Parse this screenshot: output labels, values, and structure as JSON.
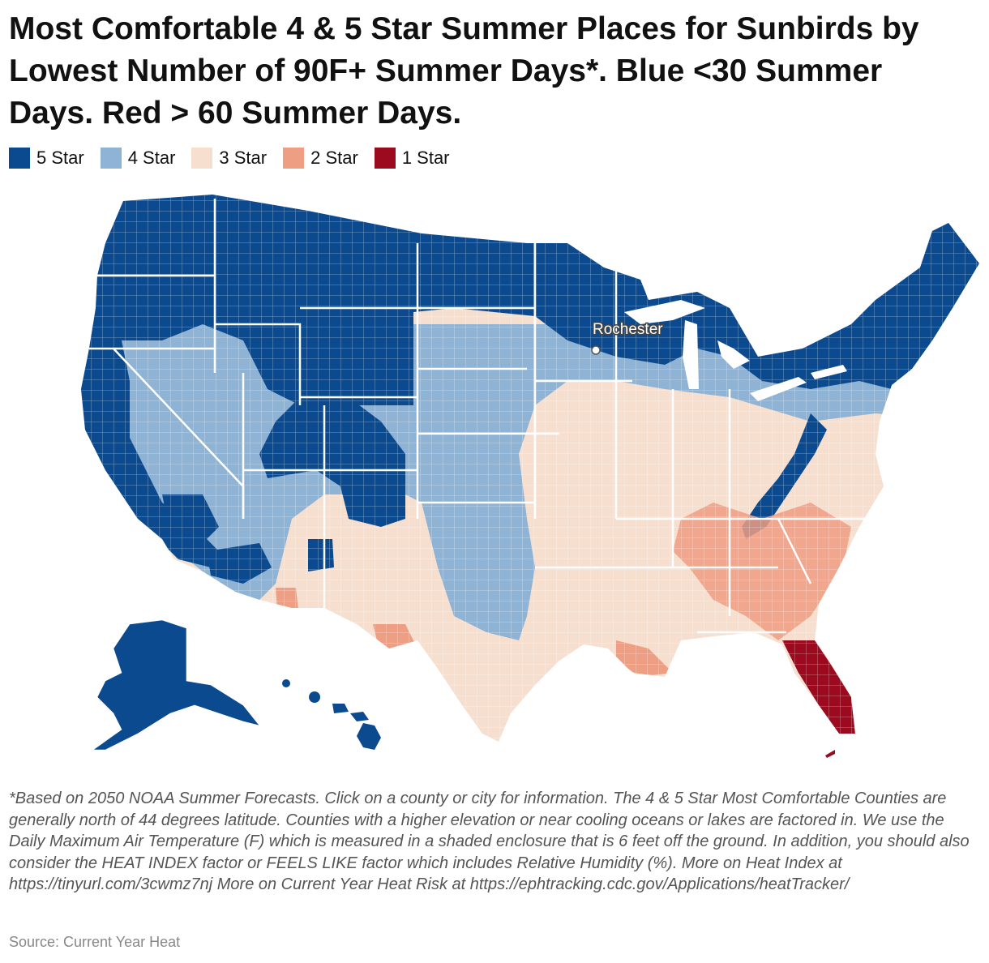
{
  "title": "Most Comfortable 4 & 5 Star Summer Places for Sunbirds by Lowest Number of 90F+ Summer Days*. Blue <30 Summer Days. Red > 60 Summer Days.",
  "legend": [
    {
      "label": "5 Star",
      "color": "#0b4a8f"
    },
    {
      "label": "4 Star",
      "color": "#8fb3d4"
    },
    {
      "label": "3 Star",
      "color": "#f7dfcf"
    },
    {
      "label": "2 Star",
      "color": "#ee9e82"
    },
    {
      "label": "1 Star",
      "color": "#9b0a1e"
    }
  ],
  "map": {
    "city_marker": {
      "label": "Rochester"
    }
  },
  "footnote": "*Based on 2050 NOAA Summer Forecasts. Click on a county or city for information. The 4 & 5 Star Most Comfortable Counties are generally north of 44 degrees latitude. Counties with a higher elevation or near cooling oceans or lakes are factored in. We use the Daily Maximum Air Temperature (F) which is measured in a shaded enclosure that is 6 feet off the ground. In addition, you should also consider the HEAT INDEX factor or FEELS LIKE factor which includes Relative Humidity (%). More on Heat Index at https://tinyurl.com/3cwmz7nj More on Current Year Heat Risk at https://ephtracking.cdc.gov/Applications/heatTracker/",
  "source": "Source: Current Year Heat"
}
